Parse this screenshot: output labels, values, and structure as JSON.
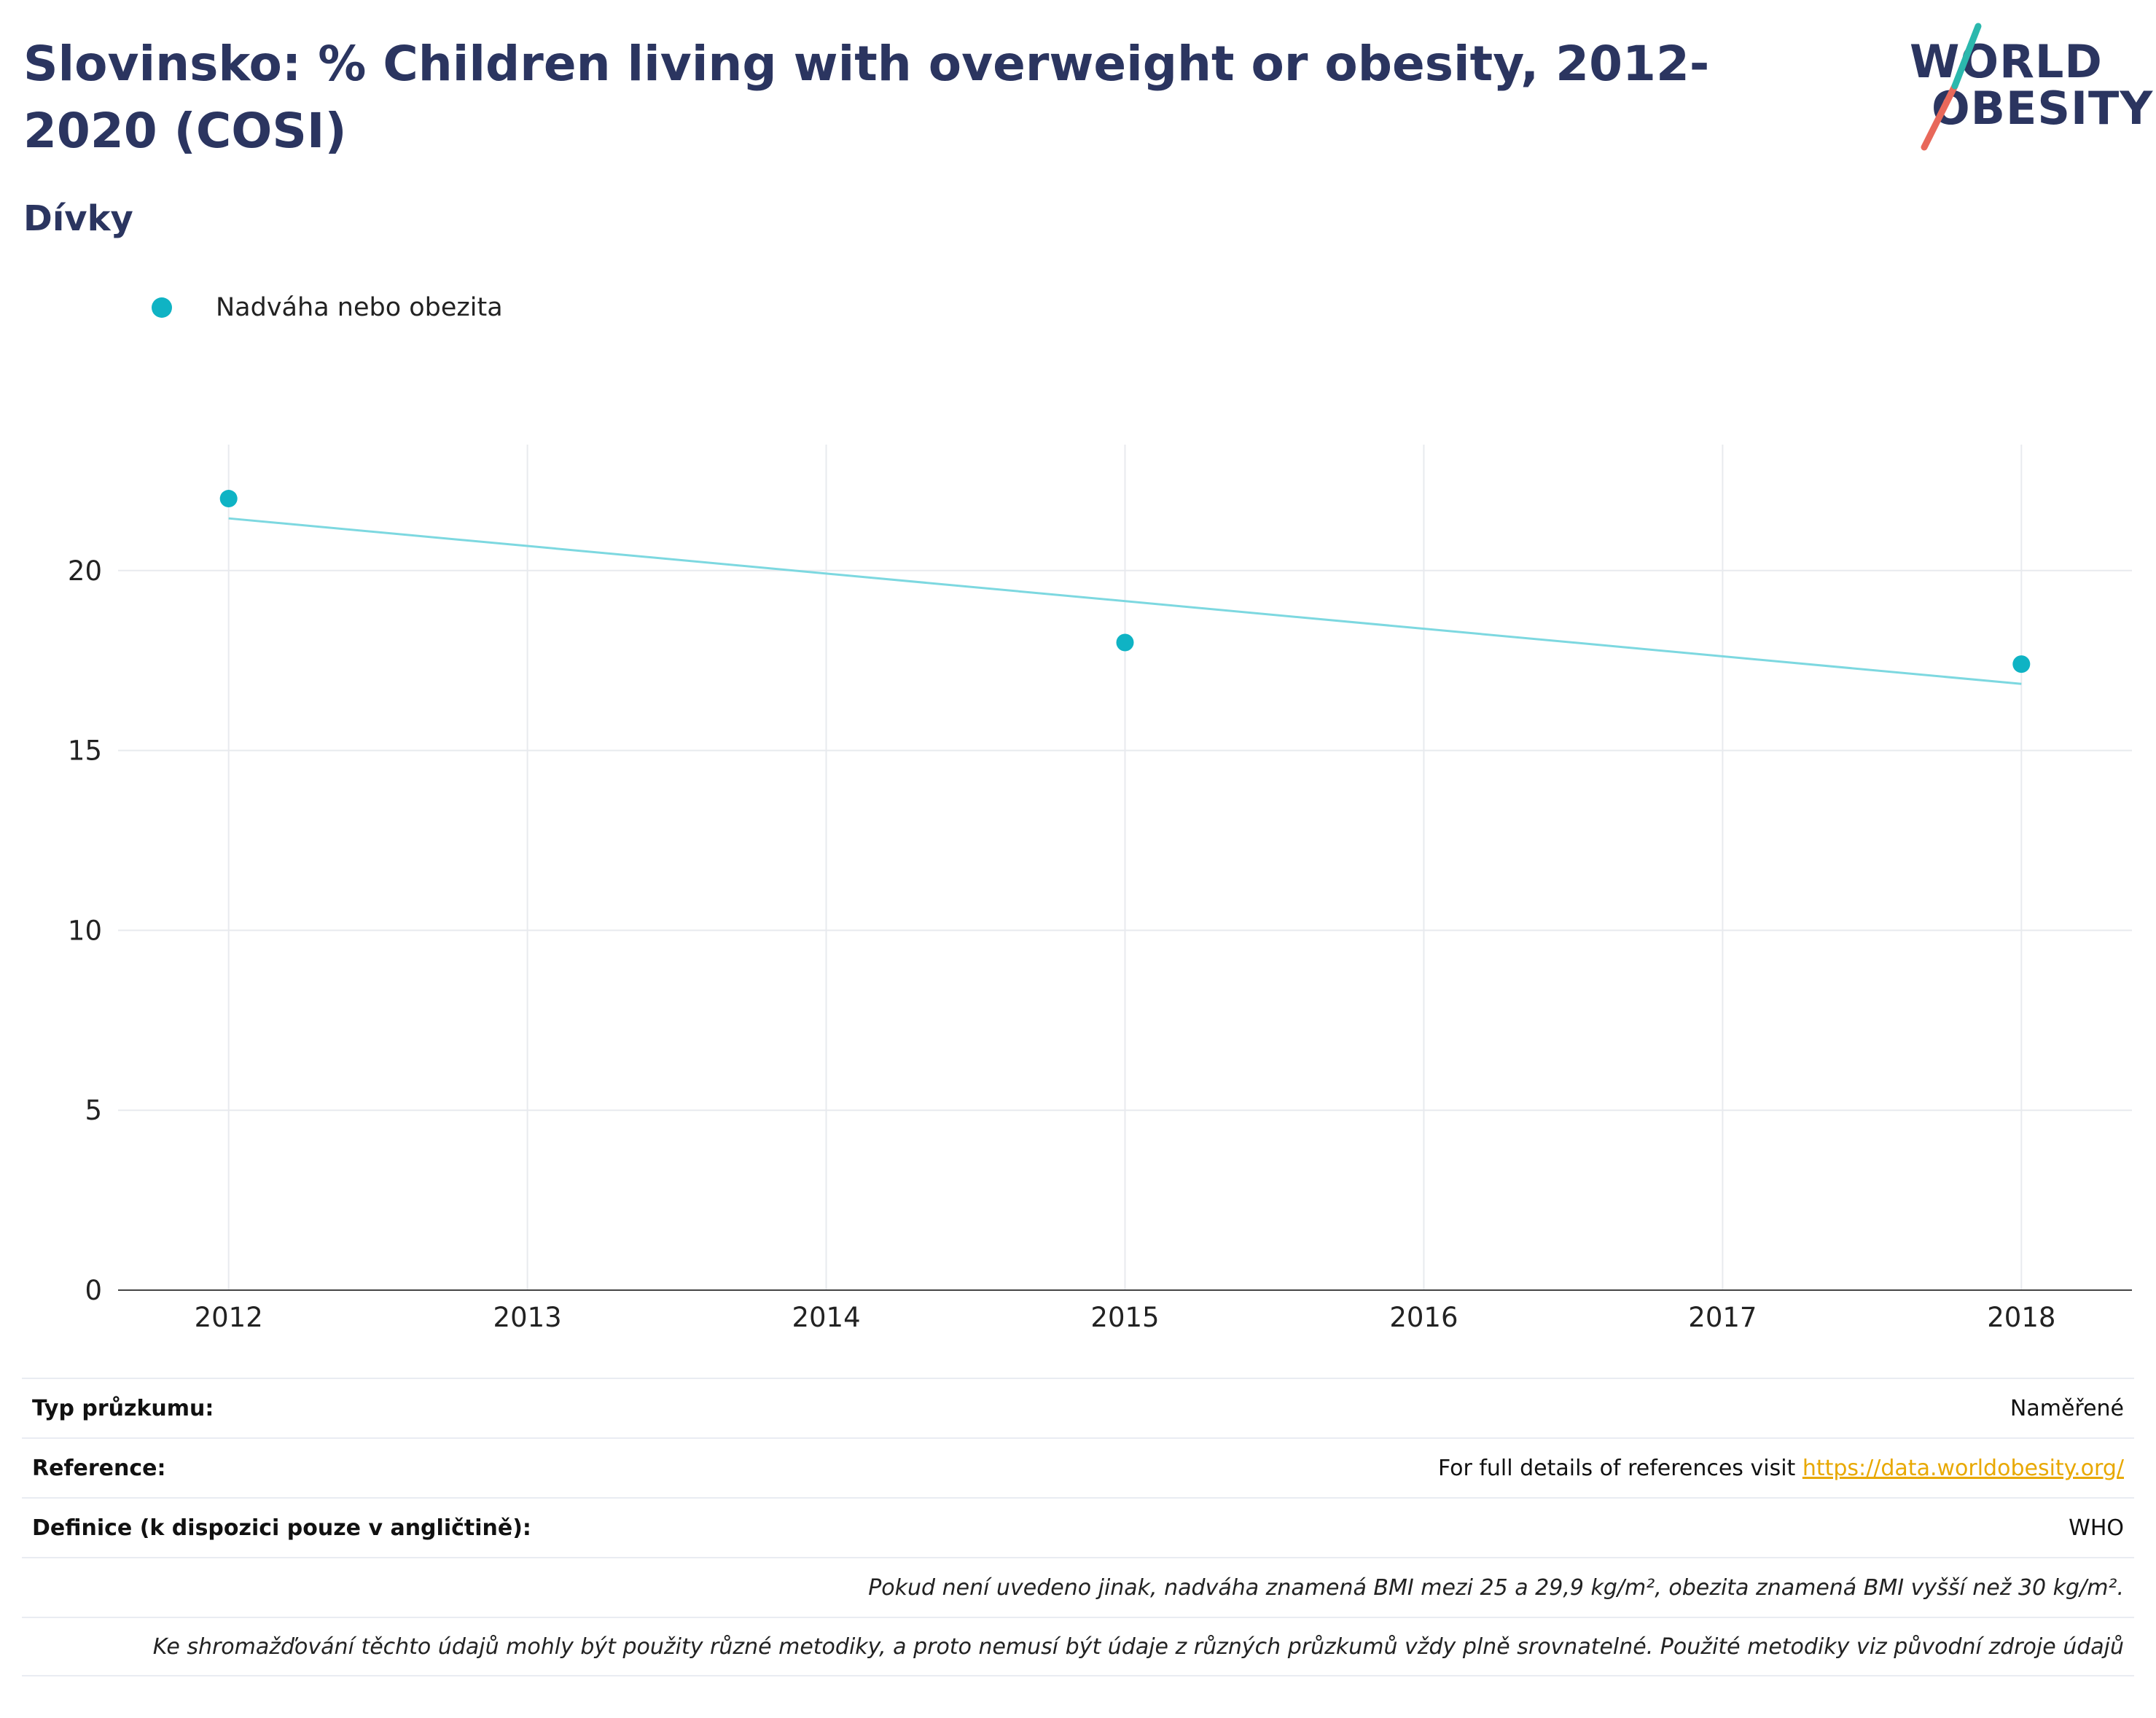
{
  "title": "Slovinsko: % Children living with overweight or obesity, 2012-2020 (COSI)",
  "subtitle": "Dívky",
  "logo": {
    "line1": "WORLD",
    "line2": "OBESITY"
  },
  "legend": {
    "label": "Nadváha nebo obezita"
  },
  "colors": {
    "series": "#0fb3c4",
    "trend": "#7dd8e0",
    "title": "#2b3560",
    "link": "#e8a800"
  },
  "chart_data": {
    "type": "scatter",
    "title": "",
    "xlabel": "",
    "ylabel": "",
    "x_ticks": [
      "2012",
      "2013",
      "2014",
      "2015",
      "2016",
      "2017",
      "2018"
    ],
    "y_ticks": [
      "0",
      "5",
      "10",
      "15",
      "20"
    ],
    "xlim": [
      2011.63,
      2018.37
    ],
    "ylim": [
      0,
      23.5
    ],
    "grid": true,
    "legend_position": "top-left",
    "series": [
      {
        "name": "Nadváha nebo obezita",
        "x": [
          2012,
          2015,
          2018
        ],
        "y": [
          22.0,
          18.0,
          17.4
        ]
      }
    ],
    "trendline": {
      "x": [
        2012,
        2018
      ],
      "y": [
        21.45,
        16.85
      ]
    }
  },
  "meta": {
    "survey_type_label": "Typ průzkumu:",
    "survey_type_value": "Naměřené",
    "reference_label": "Reference:",
    "reference_text": "For full details of references visit ",
    "reference_link": "https://data.worldobesity.org/",
    "definition_label": "Definice (k dispozici pouze v angličtině):",
    "definition_value": "WHO",
    "note1": "Pokud není uvedeno jinak, nadváha znamená BMI mezi 25 a 29,9 kg/m², obezita znamená BMI vyšší než 30 kg/m².",
    "note2": "Ke shromažďování těchto údajů mohly být použity různé metodiky, a proto nemusí být údaje z různých průzkumů vždy plně srovnatelné. Použité metodiky viz původní zdroje údajů"
  }
}
